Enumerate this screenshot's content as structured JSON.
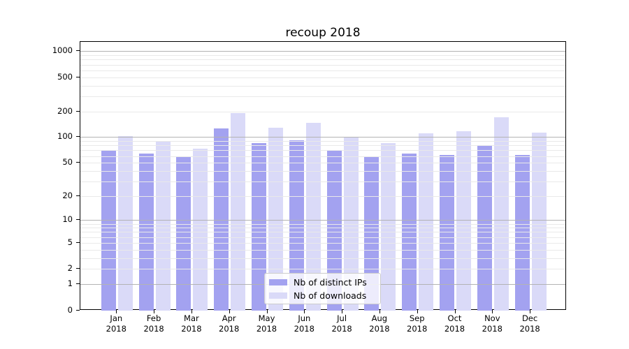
{
  "title": "recoup 2018",
  "chart_data": {
    "type": "bar",
    "title": "recoup 2018",
    "categories": [
      "Jan",
      "Feb",
      "Mar",
      "Apr",
      "May",
      "Jun",
      "Jul",
      "Aug",
      "Sep",
      "Oct",
      "Nov",
      "Dec"
    ],
    "year": "2018",
    "series": [
      {
        "name": "Nb of distinct IPs",
        "color": "#a3a2f0",
        "values": [
          70,
          64,
          60,
          126,
          85,
          91,
          71,
          58,
          64,
          62,
          79,
          62
        ]
      },
      {
        "name": "Nb of downloads",
        "color": "#dadaf8",
        "values": [
          103,
          90,
          73,
          190,
          130,
          148,
          101,
          85,
          110,
          118,
          171,
          114
        ]
      }
    ],
    "yscale": "symlog (position proportional to log10(value+1))",
    "yticks": [
      1000,
      500,
      200,
      100,
      50,
      20,
      10,
      5,
      2,
      1,
      0
    ],
    "ylim": [
      0,
      1285
    ],
    "grid": "horizontal minor + major gridlines, drawn over bars",
    "legend_position": "bottom-center"
  },
  "colors": {
    "bar_dark": "#a3a2f0",
    "bar_light": "#dadaf8",
    "grid_major": "#b3b3b3",
    "grid_minor": "#e9e9e9",
    "spine": "#000000",
    "legend_border": "#cccccc"
  }
}
